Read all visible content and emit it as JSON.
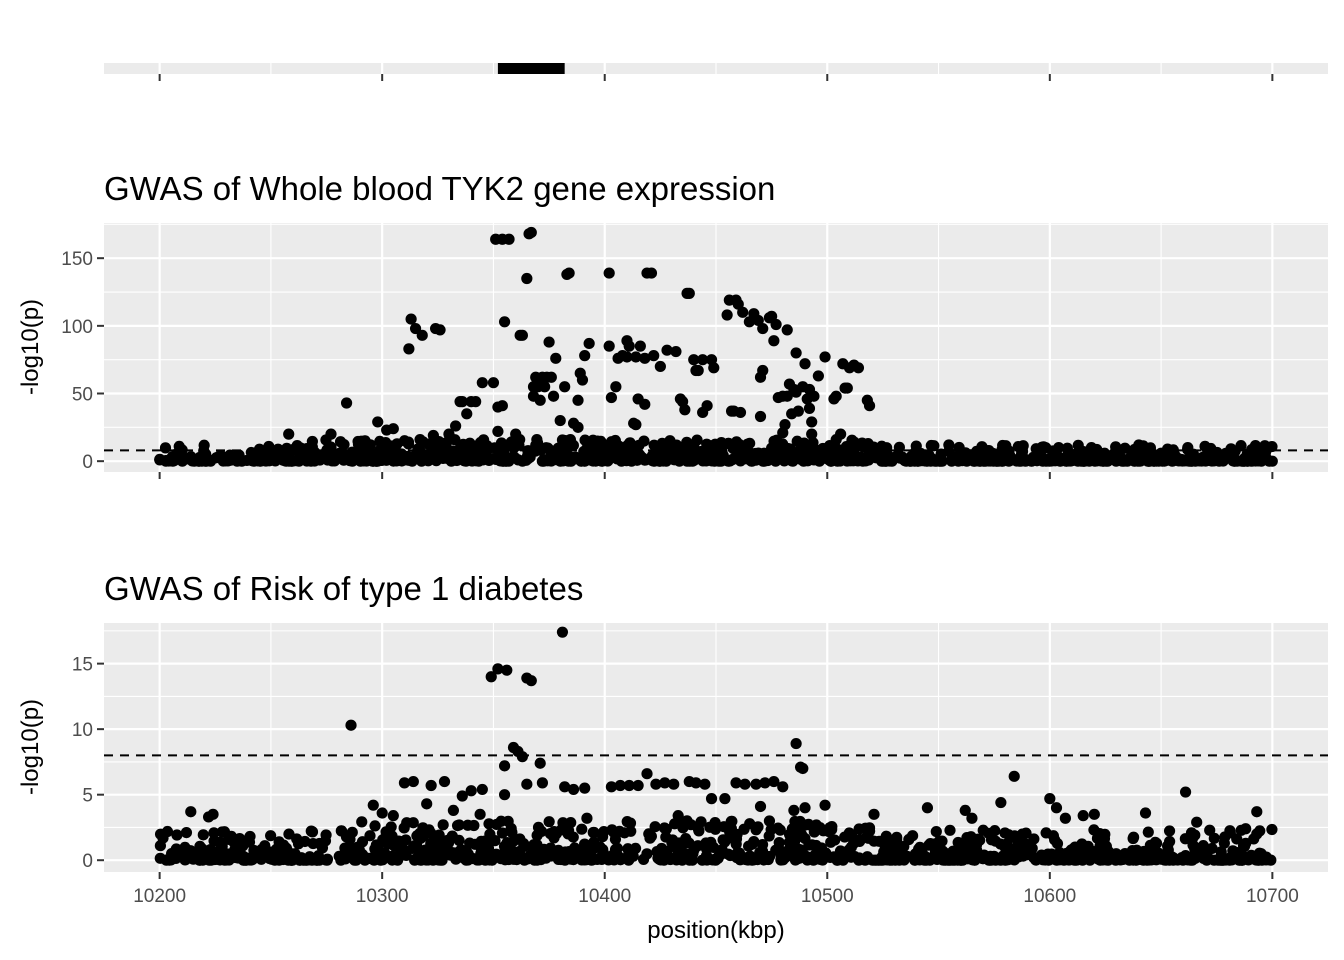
{
  "chart_data": [
    {
      "type": "gene-track",
      "x_range": [
        10175,
        10725
      ],
      "x_breaks": [
        10200,
        10300,
        10400,
        10500,
        10600,
        10700
      ],
      "genes": [
        {
          "start": 10352,
          "end": 10382,
          "color": "#000000"
        }
      ],
      "grid": true
    },
    {
      "type": "scatter",
      "title": "GWAS of Whole blood TYK2 gene expression",
      "ylabel": "-log10(p)",
      "xlabel": "",
      "xlim": [
        10175,
        10725
      ],
      "ylim": [
        -8,
        176
      ],
      "x_breaks": [
        10200,
        10300,
        10400,
        10500,
        10600,
        10700
      ],
      "y_ticks": [
        "0",
        "50",
        "100",
        "150"
      ],
      "y_tick_values": [
        0,
        50,
        100,
        150
      ],
      "threshold": 8,
      "grid": true,
      "point_color": "#000000",
      "points": [
        [
          10284,
          43
        ],
        [
          10302,
          23
        ],
        [
          10312,
          83
        ],
        [
          10313,
          105
        ],
        [
          10315,
          98
        ],
        [
          10318,
          93
        ],
        [
          10324,
          98
        ],
        [
          10326,
          97
        ],
        [
          10333,
          26
        ],
        [
          10335,
          44
        ],
        [
          10336,
          44
        ],
        [
          10338,
          35
        ],
        [
          10340,
          44
        ],
        [
          10342,
          44
        ],
        [
          10345,
          58
        ],
        [
          10350,
          58
        ],
        [
          10351,
          164
        ],
        [
          10354,
          164
        ],
        [
          10357,
          164
        ],
        [
          10352,
          40
        ],
        [
          10354,
          41
        ],
        [
          10355,
          103
        ],
        [
          10362,
          93
        ],
        [
          10363,
          93
        ],
        [
          10365,
          135
        ],
        [
          10366,
          168
        ],
        [
          10367,
          169
        ],
        [
          10368,
          55
        ],
        [
          10368,
          48
        ],
        [
          10369,
          62
        ],
        [
          10370,
          55
        ],
        [
          10371,
          45
        ],
        [
          10372,
          62
        ],
        [
          10373,
          55
        ],
        [
          10374,
          62
        ],
        [
          10375,
          88
        ],
        [
          10376,
          62
        ],
        [
          10377,
          48
        ],
        [
          10378,
          76
        ],
        [
          10380,
          30
        ],
        [
          10382,
          55
        ],
        [
          10383,
          138
        ],
        [
          10384,
          139
        ],
        [
          10386,
          28
        ],
        [
          10388,
          45
        ],
        [
          10389,
          65
        ],
        [
          10390,
          60
        ],
        [
          10391,
          78
        ],
        [
          10393,
          87
        ],
        [
          10402,
          139
        ],
        [
          10402,
          85
        ],
        [
          10403,
          47
        ],
        [
          10405,
          55
        ],
        [
          10406,
          76
        ],
        [
          10408,
          78
        ],
        [
          10410,
          77
        ],
        [
          10410,
          89
        ],
        [
          10411,
          85
        ],
        [
          10413,
          28
        ],
        [
          10414,
          77
        ],
        [
          10415,
          46
        ],
        [
          10416,
          85
        ],
        [
          10418,
          42
        ],
        [
          10418,
          76
        ],
        [
          10419,
          139
        ],
        [
          10421,
          139
        ],
        [
          10422,
          78
        ],
        [
          10425,
          70
        ],
        [
          10428,
          82
        ],
        [
          10432,
          81
        ],
        [
          10434,
          46
        ],
        [
          10435,
          44
        ],
        [
          10436,
          38
        ],
        [
          10437,
          124
        ],
        [
          10438,
          124
        ],
        [
          10440,
          75
        ],
        [
          10441,
          67
        ],
        [
          10442,
          67
        ],
        [
          10444,
          36
        ],
        [
          10444,
          75
        ],
        [
          10446,
          41
        ],
        [
          10448,
          75
        ],
        [
          10449,
          69
        ],
        [
          10455,
          108
        ],
        [
          10456,
          119
        ],
        [
          10457,
          37
        ],
        [
          10458,
          37
        ],
        [
          10459,
          119
        ],
        [
          10460,
          116
        ],
        [
          10461,
          36
        ],
        [
          10462,
          110
        ],
        [
          10465,
          103
        ],
        [
          10467,
          109
        ],
        [
          10469,
          104
        ],
        [
          10470,
          62
        ],
        [
          10470,
          33
        ],
        [
          10471,
          67
        ],
        [
          10471,
          98
        ],
        [
          10474,
          106
        ],
        [
          10475,
          107
        ],
        [
          10476,
          89
        ],
        [
          10477,
          101
        ],
        [
          10478,
          47
        ],
        [
          10480,
          48
        ],
        [
          10480,
          21
        ],
        [
          10481,
          27
        ],
        [
          10482,
          48
        ],
        [
          10482,
          97
        ],
        [
          10483,
          57
        ],
        [
          10484,
          35
        ],
        [
          10485,
          53
        ],
        [
          10486,
          51
        ],
        [
          10486,
          80
        ],
        [
          10487,
          37
        ],
        [
          10489,
          55
        ],
        [
          10490,
          72
        ],
        [
          10491,
          46
        ],
        [
          10492,
          53
        ],
        [
          10492,
          39
        ],
        [
          10493,
          20
        ],
        [
          10493,
          29
        ],
        [
          10494,
          48
        ],
        [
          10496,
          63
        ],
        [
          10499,
          77
        ],
        [
          10503,
          46
        ],
        [
          10504,
          48
        ],
        [
          10507,
          72
        ],
        [
          10508,
          54
        ],
        [
          10509,
          54
        ],
        [
          10510,
          69
        ],
        [
          10512,
          71
        ],
        [
          10514,
          69
        ],
        [
          10518,
          45
        ],
        [
          10519,
          41
        ],
        [
          10258,
          20
        ],
        [
          10277,
          20
        ],
        [
          10298,
          29
        ],
        [
          10305,
          24
        ],
        [
          10323,
          19
        ],
        [
          10330,
          20
        ],
        [
          10352,
          22
        ],
        [
          10360,
          20
        ],
        [
          10388,
          25
        ],
        [
          10414,
          27
        ],
        [
          10506,
          20
        ],
        [
          10604,
          10
        ],
        [
          10640,
          12
        ],
        [
          10662,
          10
        ]
      ],
      "noise": {
        "x_range": [
          10200,
          10700
        ],
        "typical_max": 12,
        "active_range": [
          10260,
          10525
        ],
        "active_max": 16
      }
    },
    {
      "type": "scatter",
      "title": "GWAS of Risk of type 1 diabetes",
      "ylabel": "-log10(p)",
      "xlabel": "position(kbp)",
      "xlim": [
        10175,
        10725
      ],
      "ylim": [
        -0.9,
        18.1
      ],
      "x_breaks": [
        10200,
        10300,
        10400,
        10500,
        10600,
        10700
      ],
      "x_ticks": [
        "10200",
        "10300",
        "10400",
        "10500",
        "10600",
        "10700"
      ],
      "y_ticks": [
        "0",
        "5",
        "10",
        "15"
      ],
      "y_tick_values": [
        0,
        5,
        10,
        15
      ],
      "threshold": 8,
      "grid": true,
      "point_color": "#000000",
      "points": [
        [
          10381,
          17.4
        ],
        [
          10349,
          14.0
        ],
        [
          10352,
          14.6
        ],
        [
          10356,
          14.5
        ],
        [
          10365,
          13.9
        ],
        [
          10367,
          13.7
        ],
        [
          10286,
          10.3
        ],
        [
          10359,
          8.6
        ],
        [
          10361,
          8.3
        ],
        [
          10363,
          7.9
        ],
        [
          10371,
          7.4
        ],
        [
          10355,
          7.2
        ],
        [
          10486,
          8.9
        ],
        [
          10488,
          7.1
        ],
        [
          10489,
          7.0
        ],
        [
          10584,
          6.4
        ],
        [
          10661,
          5.2
        ],
        [
          10310,
          5.9
        ],
        [
          10314,
          6.0
        ],
        [
          10322,
          5.7
        ],
        [
          10328,
          6.0
        ],
        [
          10340,
          5.3
        ],
        [
          10345,
          5.4
        ],
        [
          10355,
          5.0
        ],
        [
          10365,
          5.8
        ],
        [
          10372,
          5.9
        ],
        [
          10382,
          5.6
        ],
        [
          10386,
          5.4
        ],
        [
          10391,
          5.5
        ],
        [
          10403,
          5.6
        ],
        [
          10407,
          5.7
        ],
        [
          10411,
          5.7
        ],
        [
          10415,
          5.7
        ],
        [
          10419,
          6.6
        ],
        [
          10423,
          5.8
        ],
        [
          10427,
          5.9
        ],
        [
          10431,
          5.8
        ],
        [
          10438,
          6.0
        ],
        [
          10441,
          5.9
        ],
        [
          10445,
          5.8
        ],
        [
          10448,
          4.7
        ],
        [
          10454,
          4.7
        ],
        [
          10459,
          5.9
        ],
        [
          10463,
          5.8
        ],
        [
          10468,
          5.8
        ],
        [
          10472,
          5.9
        ],
        [
          10470,
          4.1
        ],
        [
          10476,
          6.0
        ],
        [
          10480,
          5.6
        ],
        [
          10485,
          3.8
        ],
        [
          10490,
          4.0
        ],
        [
          10499,
          4.2
        ],
        [
          10545,
          4.0
        ],
        [
          10562,
          3.8
        ],
        [
          10578,
          4.4
        ],
        [
          10600,
          4.7
        ],
        [
          10603,
          4.0
        ],
        [
          10693,
          3.7
        ],
        [
          10643,
          3.6
        ],
        [
          10214,
          3.7
        ],
        [
          10222,
          3.3
        ],
        [
          10224,
          3.5
        ],
        [
          10296,
          4.2
        ],
        [
          10300,
          3.6
        ],
        [
          10305,
          3.4
        ],
        [
          10320,
          4.3
        ],
        [
          10332,
          3.8
        ],
        [
          10336,
          4.9
        ],
        [
          10344,
          3.5
        ],
        [
          10392,
          3.2
        ],
        [
          10433,
          3.4
        ],
        [
          10521,
          3.5
        ],
        [
          10565,
          3.2
        ],
        [
          10620,
          3.5
        ],
        [
          10607,
          3.2
        ],
        [
          10615,
          3.4
        ],
        [
          10666,
          2.9
        ],
        [
          10688,
          2.4
        ],
        [
          10693,
          2.0
        ]
      ],
      "noise": {
        "x_range": [
          10200,
          10700
        ],
        "typical_max": 2.4,
        "active_range": [
          10290,
          10520
        ],
        "active_max": 3.0
      }
    }
  ]
}
